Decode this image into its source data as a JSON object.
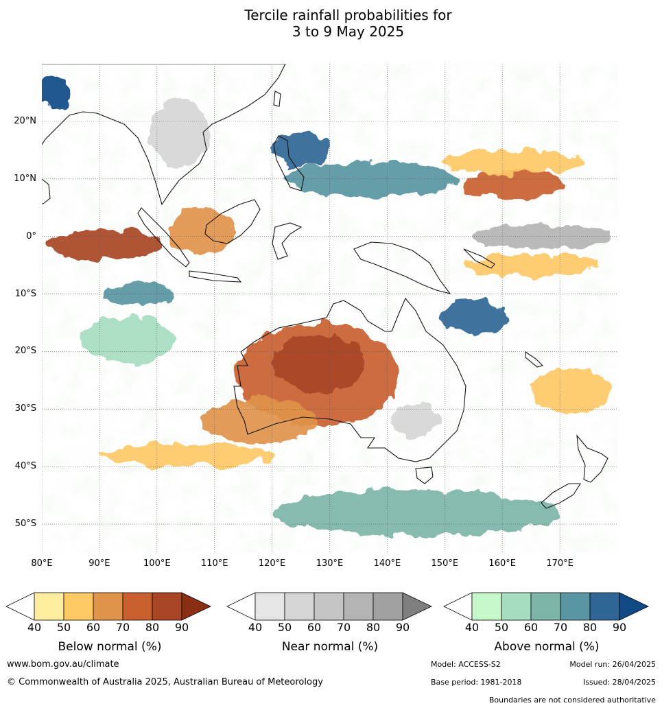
{
  "title": {
    "line1": "Tercile rainfall probabilities for",
    "line2": "3 to 9 May 2025"
  },
  "map": {
    "lat_labels": [
      "20°N",
      "10°N",
      "0°",
      "10°S",
      "20°S",
      "30°S",
      "40°S",
      "50°S"
    ],
    "lat_values": [
      20,
      10,
      0,
      -10,
      -20,
      -30,
      -40,
      -50
    ],
    "lon_labels": [
      "80°E",
      "90°E",
      "100°E",
      "110°E",
      "120°E",
      "130°E",
      "140°E",
      "150°E",
      "160°E",
      "170°E"
    ],
    "lon_values": [
      80,
      90,
      100,
      110,
      120,
      130,
      140,
      150,
      160,
      170
    ],
    "lon_range": [
      80,
      180
    ],
    "lat_range": [
      -55,
      30
    ],
    "regions": [
      {
        "category": "below",
        "level": 80,
        "lat": -1.5,
        "lon": 91,
        "rlat": 2.5,
        "rlon": 10
      },
      {
        "category": "below",
        "level": 60,
        "lat": 1,
        "lon": 108,
        "rlat": 4,
        "rlon": 6
      },
      {
        "category": "below",
        "level": 70,
        "lat": -24,
        "lon": 128,
        "rlat": 9,
        "rlon": 14
      },
      {
        "category": "below",
        "level": 80,
        "lat": -22,
        "lon": 128,
        "rlat": 5,
        "rlon": 8
      },
      {
        "category": "below",
        "level": 60,
        "lat": -32,
        "lon": 118,
        "rlat": 4,
        "rlon": 10
      },
      {
        "category": "below",
        "level": 70,
        "lat": 9,
        "lon": 162,
        "rlat": 2.5,
        "rlon": 9
      },
      {
        "category": "below",
        "level": 50,
        "lat": 13,
        "lon": 162,
        "rlat": 2,
        "rlon": 13
      },
      {
        "category": "below",
        "level": 50,
        "lat": -5,
        "lon": 165,
        "rlat": 2,
        "rlon": 11
      },
      {
        "category": "below",
        "level": 50,
        "lat": -27,
        "lon": 172,
        "rlat": 4,
        "rlon": 7
      },
      {
        "category": "below",
        "level": 50,
        "lat": -38,
        "lon": 105,
        "rlat": 2,
        "rlon": 15
      },
      {
        "category": "near",
        "level": 70,
        "lat": 0,
        "lon": 167,
        "rlat": 2,
        "rlon": 12
      },
      {
        "category": "near",
        "level": 50,
        "lat": 18,
        "lon": 104,
        "rlat": 6,
        "rlon": 5
      },
      {
        "category": "near",
        "level": 50,
        "lat": -32,
        "lon": 145,
        "rlat": 3,
        "rlon": 4
      },
      {
        "category": "above",
        "level": 70,
        "lat": 10,
        "lon": 137,
        "rlat": 3,
        "rlon": 15
      },
      {
        "category": "above",
        "level": 80,
        "lat": 15,
        "lon": 125,
        "rlat": 3,
        "rlon": 5
      },
      {
        "category": "above",
        "level": 80,
        "lat": -14,
        "lon": 155,
        "rlat": 3,
        "rlon": 6
      },
      {
        "category": "above",
        "level": 70,
        "lat": -10,
        "lon": 97,
        "rlat": 2,
        "rlon": 6
      },
      {
        "category": "above",
        "level": 60,
        "lat": -48,
        "lon": 145,
        "rlat": 4,
        "rlon": 25
      },
      {
        "category": "above",
        "level": 50,
        "lat": -18,
        "lon": 95,
        "rlat": 4,
        "rlon": 8
      },
      {
        "category": "above",
        "level": 90,
        "lat": 25,
        "lon": 82,
        "rlat": 3,
        "rlon": 3
      }
    ]
  },
  "legends": [
    {
      "title": "Below normal (%)",
      "ticks": [
        "40",
        "50",
        "60",
        "70",
        "80",
        "90"
      ],
      "colors": [
        "#ffeda0",
        "#fec865",
        "#e0934a",
        "#c8602f",
        "#a84524",
        "#8a2e14"
      ]
    },
    {
      "title": "Near normal (%)",
      "ticks": [
        "40",
        "50",
        "60",
        "70",
        "80",
        "90"
      ],
      "colors": [
        "#e6e6e6",
        "#d6d6d6",
        "#c5c5c5",
        "#b4b4b4",
        "#a1a1a1",
        "#7f7f7f"
      ]
    },
    {
      "title": "Above normal (%)",
      "ticks": [
        "40",
        "50",
        "60",
        "70",
        "80",
        "90"
      ],
      "colors": [
        "#c7f8cb",
        "#a6dcbf",
        "#7db5a9",
        "#5995a2",
        "#2f6696",
        "#114a85"
      ]
    }
  ],
  "footer": {
    "website": "www.bom.gov.au/climate",
    "copyright": "© Commonwealth of Australia 2025, Australian Bureau of Meteorology",
    "model": "Model: ACCESS-S2",
    "model_run": "Model run: 26/04/2025",
    "base_period": "Base period: 1981-2018",
    "issued": "Issued: 28/04/2025",
    "disclaimer": "Boundaries are not considered authoritative"
  }
}
